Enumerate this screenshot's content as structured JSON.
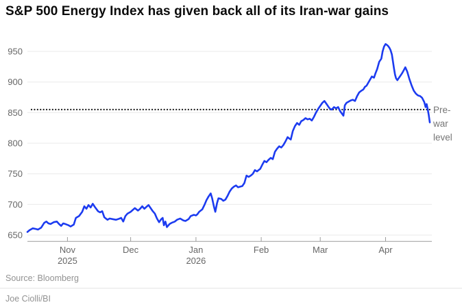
{
  "chart_data": {
    "type": "line",
    "title": "S&P 500 Energy Index has given back all of its Iran-war gains",
    "x_axis": {
      "start_date": "2025-10-13",
      "end_date": "2026-04-21",
      "unit": "days_since_start",
      "range_days": [
        0,
        191
      ],
      "ticks": [
        {
          "label": "Nov",
          "sublabel": "2025",
          "day": 19
        },
        {
          "label": "Dec",
          "sublabel": "",
          "day": 49
        },
        {
          "label": "Jan",
          "sublabel": "2026",
          "day": 80
        },
        {
          "label": "Feb",
          "sublabel": "",
          "day": 111
        },
        {
          "label": "Mar",
          "sublabel": "",
          "day": 139
        },
        {
          "label": "Apr",
          "sublabel": "",
          "day": 170
        }
      ]
    },
    "y_axis": {
      "ticks": [
        650,
        700,
        750,
        800,
        850,
        900,
        950
      ],
      "range": [
        650,
        970
      ],
      "grid": true
    },
    "reference_line": {
      "value": 855,
      "label": "Pre-war level",
      "lines": [
        "Pre-",
        "war",
        "level"
      ],
      "style": "dotted",
      "color": "#161616"
    },
    "series": [
      {
        "name": "S&P 500 Energy Index",
        "color": "#1c3bf0",
        "points": [
          [
            0,
            655
          ],
          [
            1,
            658
          ],
          [
            2.5,
            661
          ],
          [
            4,
            660
          ],
          [
            5,
            659
          ],
          [
            6.5,
            662
          ],
          [
            8,
            670
          ],
          [
            9,
            672
          ],
          [
            10,
            669
          ],
          [
            11,
            668
          ],
          [
            12.5,
            671
          ],
          [
            14,
            672
          ],
          [
            15,
            668
          ],
          [
            16,
            665
          ],
          [
            17,
            669
          ],
          [
            18,
            668
          ],
          [
            19.5,
            666
          ],
          [
            20.5,
            664
          ],
          [
            22,
            667
          ],
          [
            23,
            678
          ],
          [
            24.5,
            681
          ],
          [
            26,
            688
          ],
          [
            27,
            697
          ],
          [
            28,
            693
          ],
          [
            29,
            699
          ],
          [
            30,
            695
          ],
          [
            31,
            701
          ],
          [
            32,
            696
          ],
          [
            33.5,
            689
          ],
          [
            34.5,
            687
          ],
          [
            35.5,
            689
          ],
          [
            36.5,
            679
          ],
          [
            38,
            675
          ],
          [
            39,
            677
          ],
          [
            40.5,
            676
          ],
          [
            42,
            675
          ],
          [
            43,
            676
          ],
          [
            44.5,
            678
          ],
          [
            45.5,
            672
          ],
          [
            46.5,
            681
          ],
          [
            47.5,
            685
          ],
          [
            49,
            688
          ],
          [
            50,
            691
          ],
          [
            51,
            694
          ],
          [
            52.5,
            690
          ],
          [
            53.5,
            693
          ],
          [
            54.5,
            697
          ],
          [
            55.5,
            693
          ],
          [
            56.5,
            696
          ],
          [
            57.5,
            699
          ],
          [
            58.5,
            694
          ],
          [
            59.5,
            689
          ],
          [
            60.5,
            685
          ],
          [
            61.5,
            677
          ],
          [
            62.5,
            671
          ],
          [
            63.5,
            676
          ],
          [
            64.2,
            678
          ],
          [
            64.8,
            666
          ],
          [
            65.5,
            672
          ],
          [
            66.2,
            663
          ],
          [
            67.5,
            668
          ],
          [
            68.5,
            670
          ],
          [
            70,
            672
          ],
          [
            71,
            675
          ],
          [
            72.5,
            677
          ],
          [
            74,
            674
          ],
          [
            75,
            673
          ],
          [
            76.5,
            676
          ],
          [
            77.5,
            681
          ],
          [
            79,
            683
          ],
          [
            80,
            682
          ],
          [
            80.7,
            684
          ],
          [
            81.5,
            688
          ],
          [
            83,
            692
          ],
          [
            84,
            699
          ],
          [
            85,
            707
          ],
          [
            86,
            713
          ],
          [
            87,
            718
          ],
          [
            87.7,
            710
          ],
          [
            88.5,
            697
          ],
          [
            89.2,
            688
          ],
          [
            90,
            702
          ],
          [
            90.7,
            710
          ],
          [
            92,
            709
          ],
          [
            93,
            706
          ],
          [
            94,
            708
          ],
          [
            95,
            714
          ],
          [
            96,
            721
          ],
          [
            97,
            726
          ],
          [
            98,
            729
          ],
          [
            99,
            731
          ],
          [
            100,
            728
          ],
          [
            101,
            729
          ],
          [
            102,
            730
          ],
          [
            103,
            735
          ],
          [
            104,
            747
          ],
          [
            105,
            745
          ],
          [
            106,
            747
          ],
          [
            107,
            750
          ],
          [
            108,
            756
          ],
          [
            109,
            754
          ],
          [
            109.7,
            756
          ],
          [
            110.5,
            758
          ],
          [
            111.5,
            765
          ],
          [
            112.5,
            771
          ],
          [
            113.5,
            769
          ],
          [
            114.5,
            773
          ],
          [
            115.5,
            776
          ],
          [
            116.5,
            774
          ],
          [
            117.5,
            786
          ],
          [
            118.5,
            791
          ],
          [
            119.5,
            795
          ],
          [
            120.5,
            793
          ],
          [
            121.5,
            797
          ],
          [
            122.5,
            803
          ],
          [
            123.5,
            810
          ],
          [
            124.2,
            808
          ],
          [
            125,
            806
          ],
          [
            126,
            820
          ],
          [
            127,
            828
          ],
          [
            128,
            833
          ],
          [
            129,
            830
          ],
          [
            130,
            836
          ],
          [
            131,
            838
          ],
          [
            132,
            841
          ],
          [
            133,
            839
          ],
          [
            134,
            840
          ],
          [
            135,
            837
          ],
          [
            136,
            843
          ],
          [
            137,
            850
          ],
          [
            138,
            856
          ],
          [
            139,
            861
          ],
          [
            140,
            866
          ],
          [
            141,
            869
          ],
          [
            142,
            864
          ],
          [
            143,
            859
          ],
          [
            143.7,
            856
          ],
          [
            144.5,
            855
          ],
          [
            145.5,
            859
          ],
          [
            146.5,
            857
          ],
          [
            147.5,
            859
          ],
          [
            148.5,
            852
          ],
          [
            150,
            845
          ],
          [
            150.7,
            862
          ],
          [
            151.5,
            866
          ],
          [
            152.5,
            868
          ],
          [
            153.5,
            870
          ],
          [
            154.5,
            871
          ],
          [
            155.5,
            869
          ],
          [
            156.5,
            877
          ],
          [
            157.5,
            883
          ],
          [
            158.2,
            885
          ],
          [
            159.5,
            888
          ],
          [
            160.2,
            892
          ],
          [
            161,
            894
          ],
          [
            162.5,
            903
          ],
          [
            163.5,
            909
          ],
          [
            164.5,
            907
          ],
          [
            165.2,
            914
          ],
          [
            166,
            921
          ],
          [
            167,
            933
          ],
          [
            168,
            938
          ],
          [
            168.6,
            950
          ],
          [
            169.3,
            958
          ],
          [
            170,
            962
          ],
          [
            170.5,
            961
          ],
          [
            171.2,
            959
          ],
          [
            171.8,
            956
          ],
          [
            172.4,
            952
          ],
          [
            173,
            945
          ],
          [
            173.5,
            934
          ],
          [
            174,
            922
          ],
          [
            174.5,
            912
          ],
          [
            175,
            906
          ],
          [
            175.6,
            903
          ],
          [
            176.2,
            906
          ],
          [
            177,
            910
          ],
          [
            177.8,
            914
          ],
          [
            178.6,
            919
          ],
          [
            179.4,
            924
          ],
          [
            180.3,
            917
          ],
          [
            181.3,
            905
          ],
          [
            182.4,
            894
          ],
          [
            183.4,
            886
          ],
          [
            184.4,
            881
          ],
          [
            185.4,
            878
          ],
          [
            186.4,
            877
          ],
          [
            187.4,
            874
          ],
          [
            188.4,
            867
          ],
          [
            189,
            859
          ],
          [
            189.5,
            864
          ],
          [
            190,
            856
          ],
          [
            190.5,
            846
          ],
          [
            191,
            834
          ]
        ]
      }
    ],
    "legend": "none",
    "colors": {
      "line": "#1c3bf0",
      "grid": "#e9e9e9",
      "axis": "#9c9c9c",
      "axis_text": "#666666",
      "reference": "#161616",
      "annotation_text": "#757575"
    }
  },
  "footer": {
    "source": "Source: Bloomberg",
    "credit": "Joe Ciolli/BI"
  }
}
